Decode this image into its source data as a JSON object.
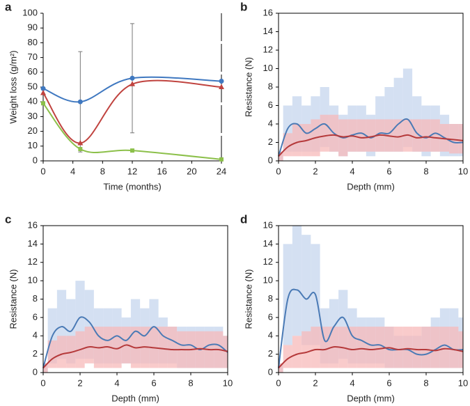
{
  "chart_data": [
    {
      "type": "line",
      "panel": "a",
      "xlabel": "Time (months)",
      "ylabel": "Weight loss (g/m²)",
      "x": [
        0,
        5,
        12,
        24
      ],
      "xlim": [
        0,
        24
      ],
      "xticks": [
        0,
        4,
        8,
        12,
        16,
        20,
        24
      ],
      "ylim": [
        0,
        100
      ],
      "yticks": [
        0,
        10,
        20,
        30,
        40,
        50,
        60,
        70,
        80,
        90,
        100
      ],
      "series": [
        {
          "color": "#3f78c0",
          "marker": "circle",
          "values": [
            49,
            40,
            56,
            54
          ],
          "errors": [
            null,
            34,
            37,
            null
          ]
        },
        {
          "color": "#c0433f",
          "marker": "triangle",
          "values": [
            46,
            12,
            52,
            50
          ]
        },
        {
          "color": "#8cc04a",
          "marker": "square",
          "values": [
            39,
            8,
            7,
            1
          ]
        }
      ]
    },
    {
      "type": "band-line",
      "panel": "b",
      "xlabel": "Depth (mm)",
      "ylabel": "Resistance (N)",
      "x": [
        0,
        0.5,
        1,
        1.5,
        2,
        2.5,
        3,
        3.5,
        4,
        4.5,
        5,
        5.5,
        6,
        6.5,
        7,
        7.5,
        8,
        8.5,
        9,
        9.5,
        10
      ],
      "xlim": [
        0,
        10
      ],
      "xticks": [
        0,
        2,
        4,
        6,
        8,
        10
      ],
      "ylim": [
        0,
        16
      ],
      "yticks": [
        0,
        2,
        4,
        6,
        8,
        10,
        12,
        14,
        16
      ],
      "series": [
        {
          "color": "#4a7ab5",
          "band_color": "#c5d6ee",
          "values": [
            0.5,
            3.5,
            4,
            3,
            3.5,
            4,
            3,
            2.5,
            2.8,
            3,
            2.5,
            3,
            3,
            4,
            4.5,
            3,
            2.5,
            3,
            2.5,
            2,
            2
          ],
          "upper": [
            1,
            6,
            7,
            6,
            7,
            8,
            6,
            5,
            6,
            6,
            5,
            7,
            8,
            9,
            10,
            7,
            6,
            6,
            5,
            4,
            4
          ],
          "lower": [
            0,
            1,
            1,
            1,
            1,
            1.5,
            1,
            0.5,
            1,
            1,
            0.5,
            1,
            1,
            1,
            1.5,
            1,
            0.5,
            1,
            0.5,
            0.5,
            0.5
          ]
        },
        {
          "color": "#b5393a",
          "band_color": "#f7b9b9",
          "values": [
            0.5,
            1.5,
            2,
            2.2,
            2.5,
            2.7,
            2.8,
            2.6,
            2.7,
            2.5,
            2.6,
            2.8,
            2.7,
            2.6,
            2.8,
            2.5,
            2.6,
            2.5,
            2.4,
            2.3,
            2.2
          ],
          "upper": [
            1,
            3,
            4,
            4,
            4.5,
            5,
            5,
            4.5,
            4.5,
            4.5,
            4.5,
            4.5,
            4.5,
            4.5,
            4.5,
            4.5,
            4.5,
            4.5,
            4,
            4,
            4
          ],
          "lower": [
            0,
            0.5,
            0.5,
            0.5,
            0.5,
            1,
            1,
            0.5,
            1,
            1,
            1,
            1,
            1,
            1,
            1,
            1,
            1,
            1,
            1,
            0.8,
            0.8
          ]
        }
      ]
    },
    {
      "type": "band-line",
      "panel": "c",
      "xlabel": "Depth (mm)",
      "ylabel": "Resistance (N)",
      "x": [
        0,
        0.5,
        1,
        1.5,
        2,
        2.5,
        3,
        3.5,
        4,
        4.5,
        5,
        5.5,
        6,
        6.5,
        7,
        7.5,
        8,
        8.5,
        9,
        9.5,
        10
      ],
      "xlim": [
        0,
        10
      ],
      "xticks": [
        0,
        2,
        4,
        6,
        8,
        10
      ],
      "ylim": [
        0,
        16
      ],
      "yticks": [
        0,
        2,
        4,
        6,
        8,
        10,
        12,
        14,
        16
      ],
      "series": [
        {
          "color": "#4a7ab5",
          "band_color": "#c5d6ee",
          "values": [
            0.5,
            4,
            5,
            4.5,
            6,
            5.5,
            4,
            3.5,
            4,
            3.5,
            4.5,
            4,
            5,
            4,
            3.5,
            3,
            3,
            2.5,
            3,
            3,
            2.2
          ],
          "upper": [
            1,
            7,
            9,
            8,
            10,
            9,
            7,
            7,
            7,
            6,
            8,
            7,
            8,
            6,
            5,
            5,
            5,
            5,
            5,
            5,
            4
          ],
          "lower": [
            0,
            1,
            1.5,
            1,
            1.5,
            1.5,
            1,
            1,
            1,
            1,
            1,
            1,
            1,
            1,
            1,
            0.5,
            0.5,
            0.5,
            0.5,
            0.5,
            0.5
          ]
        },
        {
          "color": "#b5393a",
          "band_color": "#f7b9b9",
          "values": [
            0.5,
            1.5,
            2,
            2.2,
            2.5,
            2.8,
            2.7,
            2.8,
            2.6,
            3,
            2.7,
            2.8,
            2.7,
            2.6,
            2.5,
            2.5,
            2.5,
            2.6,
            2.5,
            2.5,
            2.3
          ],
          "upper": [
            1,
            3.5,
            4,
            4,
            4.5,
            5,
            5,
            5,
            5,
            5,
            5,
            5,
            5,
            5,
            5,
            4.5,
            4.5,
            4.5,
            4.5,
            4.5,
            4
          ],
          "lower": [
            0,
            0.5,
            0.5,
            0.5,
            0.5,
            1,
            0.5,
            0.5,
            0.5,
            1,
            0.5,
            0.5,
            0.5,
            0.5,
            0.5,
            0.5,
            0.5,
            0.5,
            0.5,
            0.5,
            0.5
          ]
        }
      ]
    },
    {
      "type": "band-line",
      "panel": "d",
      "xlabel": "Depth (mm)",
      "ylabel": "Resistance (N)",
      "x": [
        0,
        0.5,
        1,
        1.5,
        2,
        2.5,
        3,
        3.5,
        4,
        4.5,
        5,
        5.5,
        6,
        6.5,
        7,
        7.5,
        8,
        8.5,
        9,
        9.5,
        10
      ],
      "xlim": [
        0,
        10
      ],
      "xticks": [
        0,
        2,
        4,
        6,
        8,
        10
      ],
      "ylim": [
        0,
        16
      ],
      "yticks": [
        0,
        2,
        4,
        6,
        8,
        10,
        12,
        14,
        16
      ],
      "series": [
        {
          "color": "#4a7ab5",
          "band_color": "#c5d6ee",
          "values": [
            0.5,
            8,
            9,
            8,
            8.5,
            3.5,
            5,
            6,
            4,
            3.5,
            3,
            3,
            2.5,
            2.5,
            2.5,
            2,
            2,
            2.5,
            3,
            2.5,
            2.5
          ],
          "upper": [
            1,
            14,
            16,
            15,
            14,
            7,
            8,
            9,
            7,
            6,
            6,
            6,
            5,
            4,
            4,
            4,
            5,
            6,
            7,
            7,
            6
          ],
          "lower": [
            0,
            3,
            4,
            3,
            3,
            1,
            1,
            1.5,
            1,
            1,
            1,
            1,
            0.5,
            0.5,
            0.5,
            0.5,
            0.5,
            0.5,
            0.5,
            0.5,
            0.5
          ]
        },
        {
          "color": "#b5393a",
          "band_color": "#f7b9b9",
          "values": [
            0.5,
            1.5,
            2,
            2.2,
            2.5,
            2.5,
            2.8,
            2.7,
            2.5,
            2.6,
            2.5,
            2.6,
            2.7,
            2.5,
            2.6,
            2.5,
            2.5,
            2.4,
            2.6,
            2.5,
            2.3
          ],
          "upper": [
            1,
            3,
            4,
            4.5,
            5,
            5,
            5,
            5,
            5,
            5,
            5,
            5,
            5,
            5,
            5,
            5,
            5,
            5,
            5,
            5,
            4.5
          ],
          "lower": [
            0,
            0.5,
            0.5,
            0.5,
            0.5,
            0.5,
            0.5,
            0.5,
            0.5,
            0.5,
            0.5,
            0.5,
            0.5,
            0.5,
            0.5,
            0.5,
            0.5,
            0.5,
            0.5,
            0.5,
            0.5
          ]
        }
      ]
    }
  ]
}
